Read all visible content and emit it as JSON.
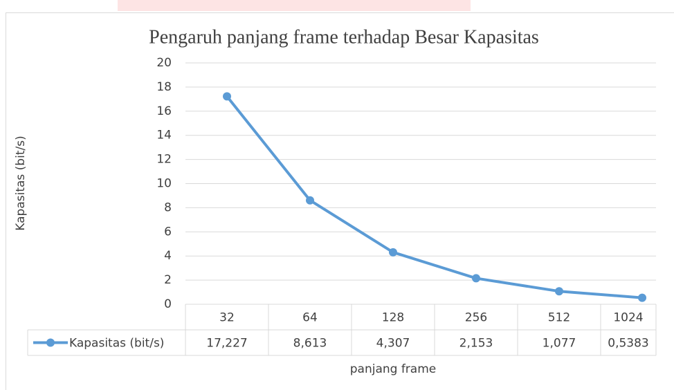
{
  "chart_data": {
    "type": "line",
    "title": "Pengaruh panjang frame terhadap Besar Kapasitas",
    "x_label": "panjang frame",
    "y_label": "Kapasitas (bit/s)",
    "categories": [
      "32",
      "64",
      "128",
      "256",
      "512",
      "1024"
    ],
    "series": [
      {
        "name": "Kapasitas (bit/s)",
        "color": "#5b9bd5",
        "values": [
          17.227,
          8.613,
          4.307,
          2.153,
          1.077,
          0.5383
        ],
        "value_labels": [
          "17,227",
          "8,613",
          "4,307",
          "2,153",
          "1,077",
          "0,5383"
        ]
      }
    ],
    "ylim": [
      0,
      20
    ],
    "yticks": [
      0,
      2,
      4,
      6,
      8,
      10,
      12,
      14,
      16,
      18,
      20
    ],
    "grid": true,
    "legend": "data-table"
  }
}
